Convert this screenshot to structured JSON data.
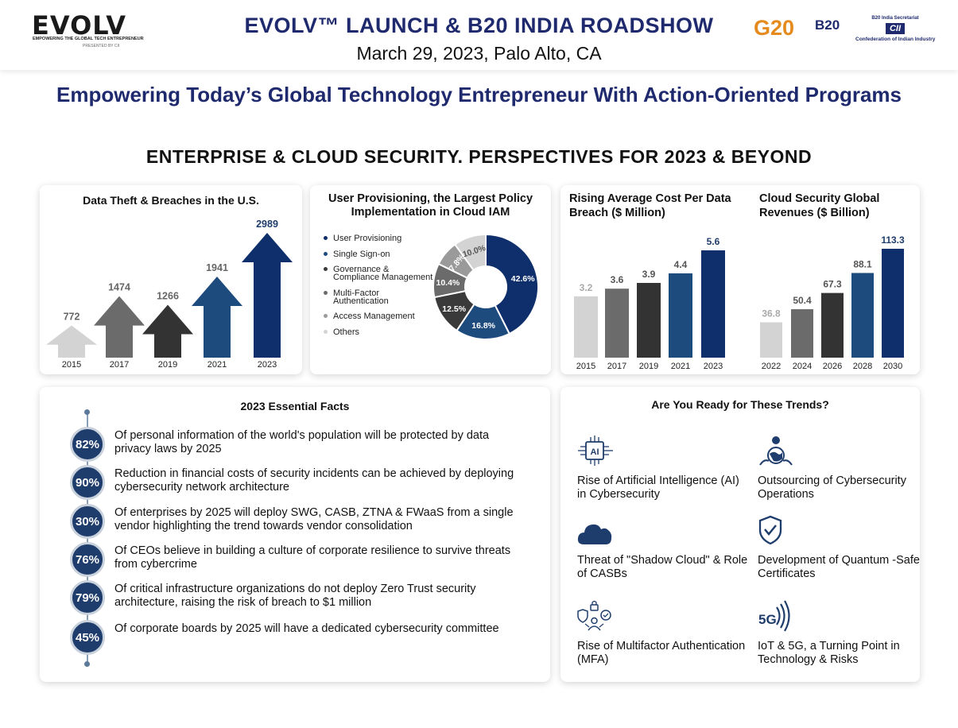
{
  "header": {
    "logo_text": "EVOLV",
    "logo_tagline": "EMPOWERING THE GLOBAL TECH ENTREPRENEUR",
    "logo_presented": "PRESENTED BY CII",
    "title": "EVOLV™ LAUNCH & B20 INDIA ROADSHOW",
    "date": "March 29, 2023, Palo Alto, CA",
    "g20_logo_text": "G20",
    "b20_logo_text": "B20",
    "cii_top": "B20 India Secretariat",
    "cii_logo_text": "CII",
    "cii_bottom": "Confederation of Indian Industry"
  },
  "tagline": "Empowering Today’s Global Technology Entrepreneur With Action-Oriented Programs",
  "main_title": "ENTERPRISE & CLOUD SECURITY. PERSPECTIVES FOR 2023 & BEYOND",
  "chart_data": [
    {
      "type": "bar",
      "title": "Data Theft & Breaches in the U.S.",
      "categories": [
        "2015",
        "2017",
        "2019",
        "2021",
        "2023"
      ],
      "values": [
        772,
        1474,
        1266,
        1941,
        2989
      ],
      "colors": [
        "#d3d3d3",
        "#6b6b6b",
        "#333333",
        "#1e4b7e",
        "#0e2f6b"
      ],
      "grid": false
    },
    {
      "type": "pie",
      "title": "User Provisioning, the Largest Policy Implementation in Cloud IAM",
      "labels": [
        "User Provisioning",
        "Single Sign-on",
        "Governance & Compliance Management",
        "Multi-Factor Authentication",
        "Access Management",
        "Others"
      ],
      "values": [
        42.6,
        16.8,
        12.5,
        10.4,
        7.8,
        10.0
      ],
      "value_labels": [
        "42.6%",
        "16.8%",
        "12.5%",
        "10.4%",
        "7.8%",
        "10.0%"
      ],
      "colors": [
        "#0e2f6b",
        "#1e4b7e",
        "#3a3a3a",
        "#6b6b6b",
        "#9a9a9a",
        "#d3d3d3"
      ],
      "legend_position": "left"
    },
    {
      "type": "bar",
      "title": "Rising Average Cost Per Data Breach ($ Million)",
      "categories": [
        "2015",
        "2017",
        "2019",
        "2021",
        "2023"
      ],
      "values": [
        3.2,
        3.6,
        3.9,
        4.4,
        5.6
      ],
      "value_labels": [
        "3.2",
        "3.6",
        "3.9",
        "4.4",
        "5.6"
      ],
      "colors": [
        "#d3d3d3",
        "#6b6b6b",
        "#333333",
        "#1e4b7e",
        "#0e2f6b"
      ],
      "grid": false
    },
    {
      "type": "bar",
      "title": "Cloud Security Global Revenues ($ Billion)",
      "categories": [
        "2022",
        "2024",
        "2026",
        "2028",
        "2030"
      ],
      "values": [
        36.8,
        50.4,
        67.3,
        88.1,
        113.3
      ],
      "value_labels": [
        "36.8",
        "50.4",
        "67.3",
        "88.1",
        "113.3"
      ],
      "colors": [
        "#d3d3d3",
        "#6b6b6b",
        "#333333",
        "#1e4b7e",
        "#0e2f6b"
      ],
      "grid": false
    }
  ],
  "facts": {
    "title": "2023 Essential Facts",
    "items": [
      {
        "badge": "82%",
        "text": "Of personal information of the world's population will be protected by data privacy laws by 2025"
      },
      {
        "badge": "90%",
        "text": "Reduction in financial costs of security incidents can be achieved by deploying cybersecurity network architecture"
      },
      {
        "badge": "30%",
        "text": "Of enterprises by 2025 will deploy SWG, CASB, ZTNA & FWaaS from a single vendor highlighting the trend towards vendor consolidation"
      },
      {
        "badge": "76%",
        "text": "Of CEOs believe in building a culture of corporate resilience to survive threats from cybercrime"
      },
      {
        "badge": "79%",
        "text": "Of critical infrastructure organizations do not deploy Zero Trust security architecture, raising the risk of breach to $1 million"
      },
      {
        "badge": "45%",
        "text": "Of corporate boards by 2025 will have a dedicated cybersecurity committee"
      }
    ]
  },
  "trends": {
    "title": "Are You Ready for These Trends?",
    "items": [
      {
        "icon": "ai-chip-icon",
        "label": "Rise of Artificial Intelligence (AI) in Cybersecurity"
      },
      {
        "icon": "globe-person-icon",
        "label": "Outsourcing of Cybersecurity Operations"
      },
      {
        "icon": "cloud-icon",
        "label": "Threat of \"Shadow Cloud\" & Role of CASBs"
      },
      {
        "icon": "shield-check-icon",
        "label": "Development of Quantum -Safe Certificates"
      },
      {
        "icon": "multifactor-lock-icon",
        "label": "Rise of Multifactor Authentication (MFA)"
      },
      {
        "icon": "5g-signal-icon",
        "label": "IoT & 5G, a Turning Point in Technology & Risks"
      }
    ],
    "ai_icon_text": "AI",
    "five_g_icon_text": "5G"
  }
}
